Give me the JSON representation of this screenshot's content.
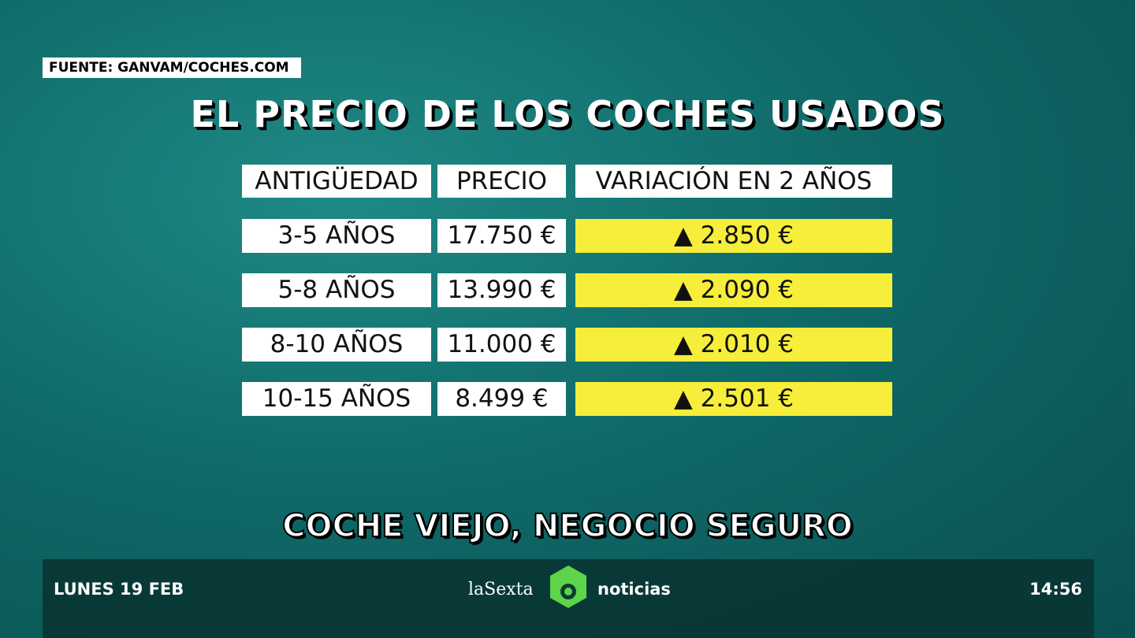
{
  "source": "FUENTE: GANVAM/COCHES.COM",
  "title": "EL PRECIO DE LOS COCHES USADOS",
  "table": {
    "header": [
      "ANTIGÜEDAD",
      "PRECIO",
      "VARIACIÓN EN 2 AÑOS"
    ],
    "rows": [
      [
        "3-5 AÑOS",
        "17.750 €",
        "▲ 2.850 €"
      ],
      [
        "5-8 AÑOS",
        "13.990 €",
        "▲ 2.090 €"
      ],
      [
        "8-10 AÑOS",
        "11.000 €",
        "▲ 2.010 €"
      ],
      [
        "10-15 AÑOS",
        "8.499 €",
        "▲ 2.501 €"
      ]
    ]
  },
  "headline": "COCHE VIEJO, NEGOCIO SEGURO",
  "ticker": {
    "date": "LUNES 19 FEB",
    "channel": "laSexta",
    "program": "noticias",
    "time": "14:56"
  }
}
